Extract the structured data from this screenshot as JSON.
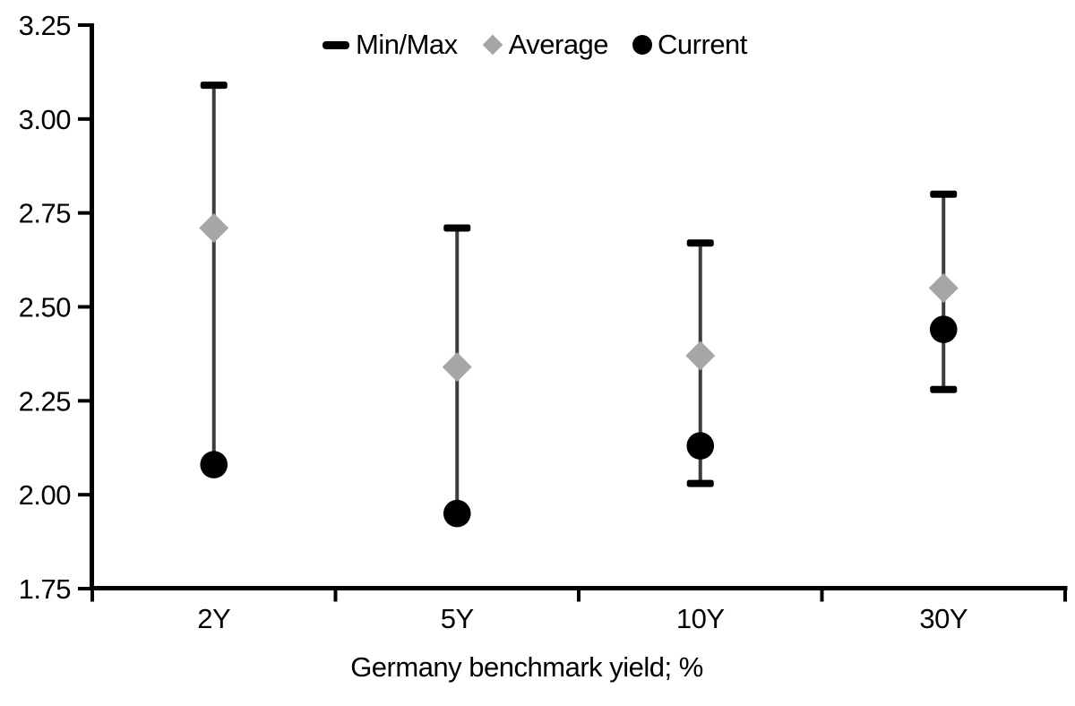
{
  "chart_data": {
    "type": "scatter",
    "variant": "min-max-range-bars",
    "title": "",
    "xlabel": "Germany benchmark yield; %",
    "ylabel": "",
    "ylim": [
      1.75,
      3.25
    ],
    "ytick_step": 0.25,
    "ytick_labels": [
      "3.25",
      "3.00",
      "2.75",
      "2.50",
      "2.25",
      "2.00",
      "1.75"
    ],
    "categories": [
      "2Y",
      "5Y",
      "10Y",
      "30Y"
    ],
    "series": [
      {
        "name": "Min/Max",
        "type": "range",
        "marker": "dash",
        "color": "#000000",
        "min": [
          2.08,
          1.95,
          2.03,
          2.28
        ],
        "max": [
          3.09,
          2.71,
          2.67,
          2.8
        ]
      },
      {
        "name": "Average",
        "type": "point",
        "marker": "diamond",
        "color": "#a6a6a6",
        "values": [
          2.71,
          2.34,
          2.37,
          2.55
        ]
      },
      {
        "name": "Current",
        "type": "point",
        "marker": "circle",
        "color": "#000000",
        "values": [
          2.08,
          1.95,
          2.13,
          2.44
        ]
      }
    ],
    "legend_position": "top",
    "grid": false,
    "colors": {
      "range_line": "#3d3d3d",
      "axis": "#000000",
      "text": "#000000",
      "background": "#ffffff"
    }
  }
}
